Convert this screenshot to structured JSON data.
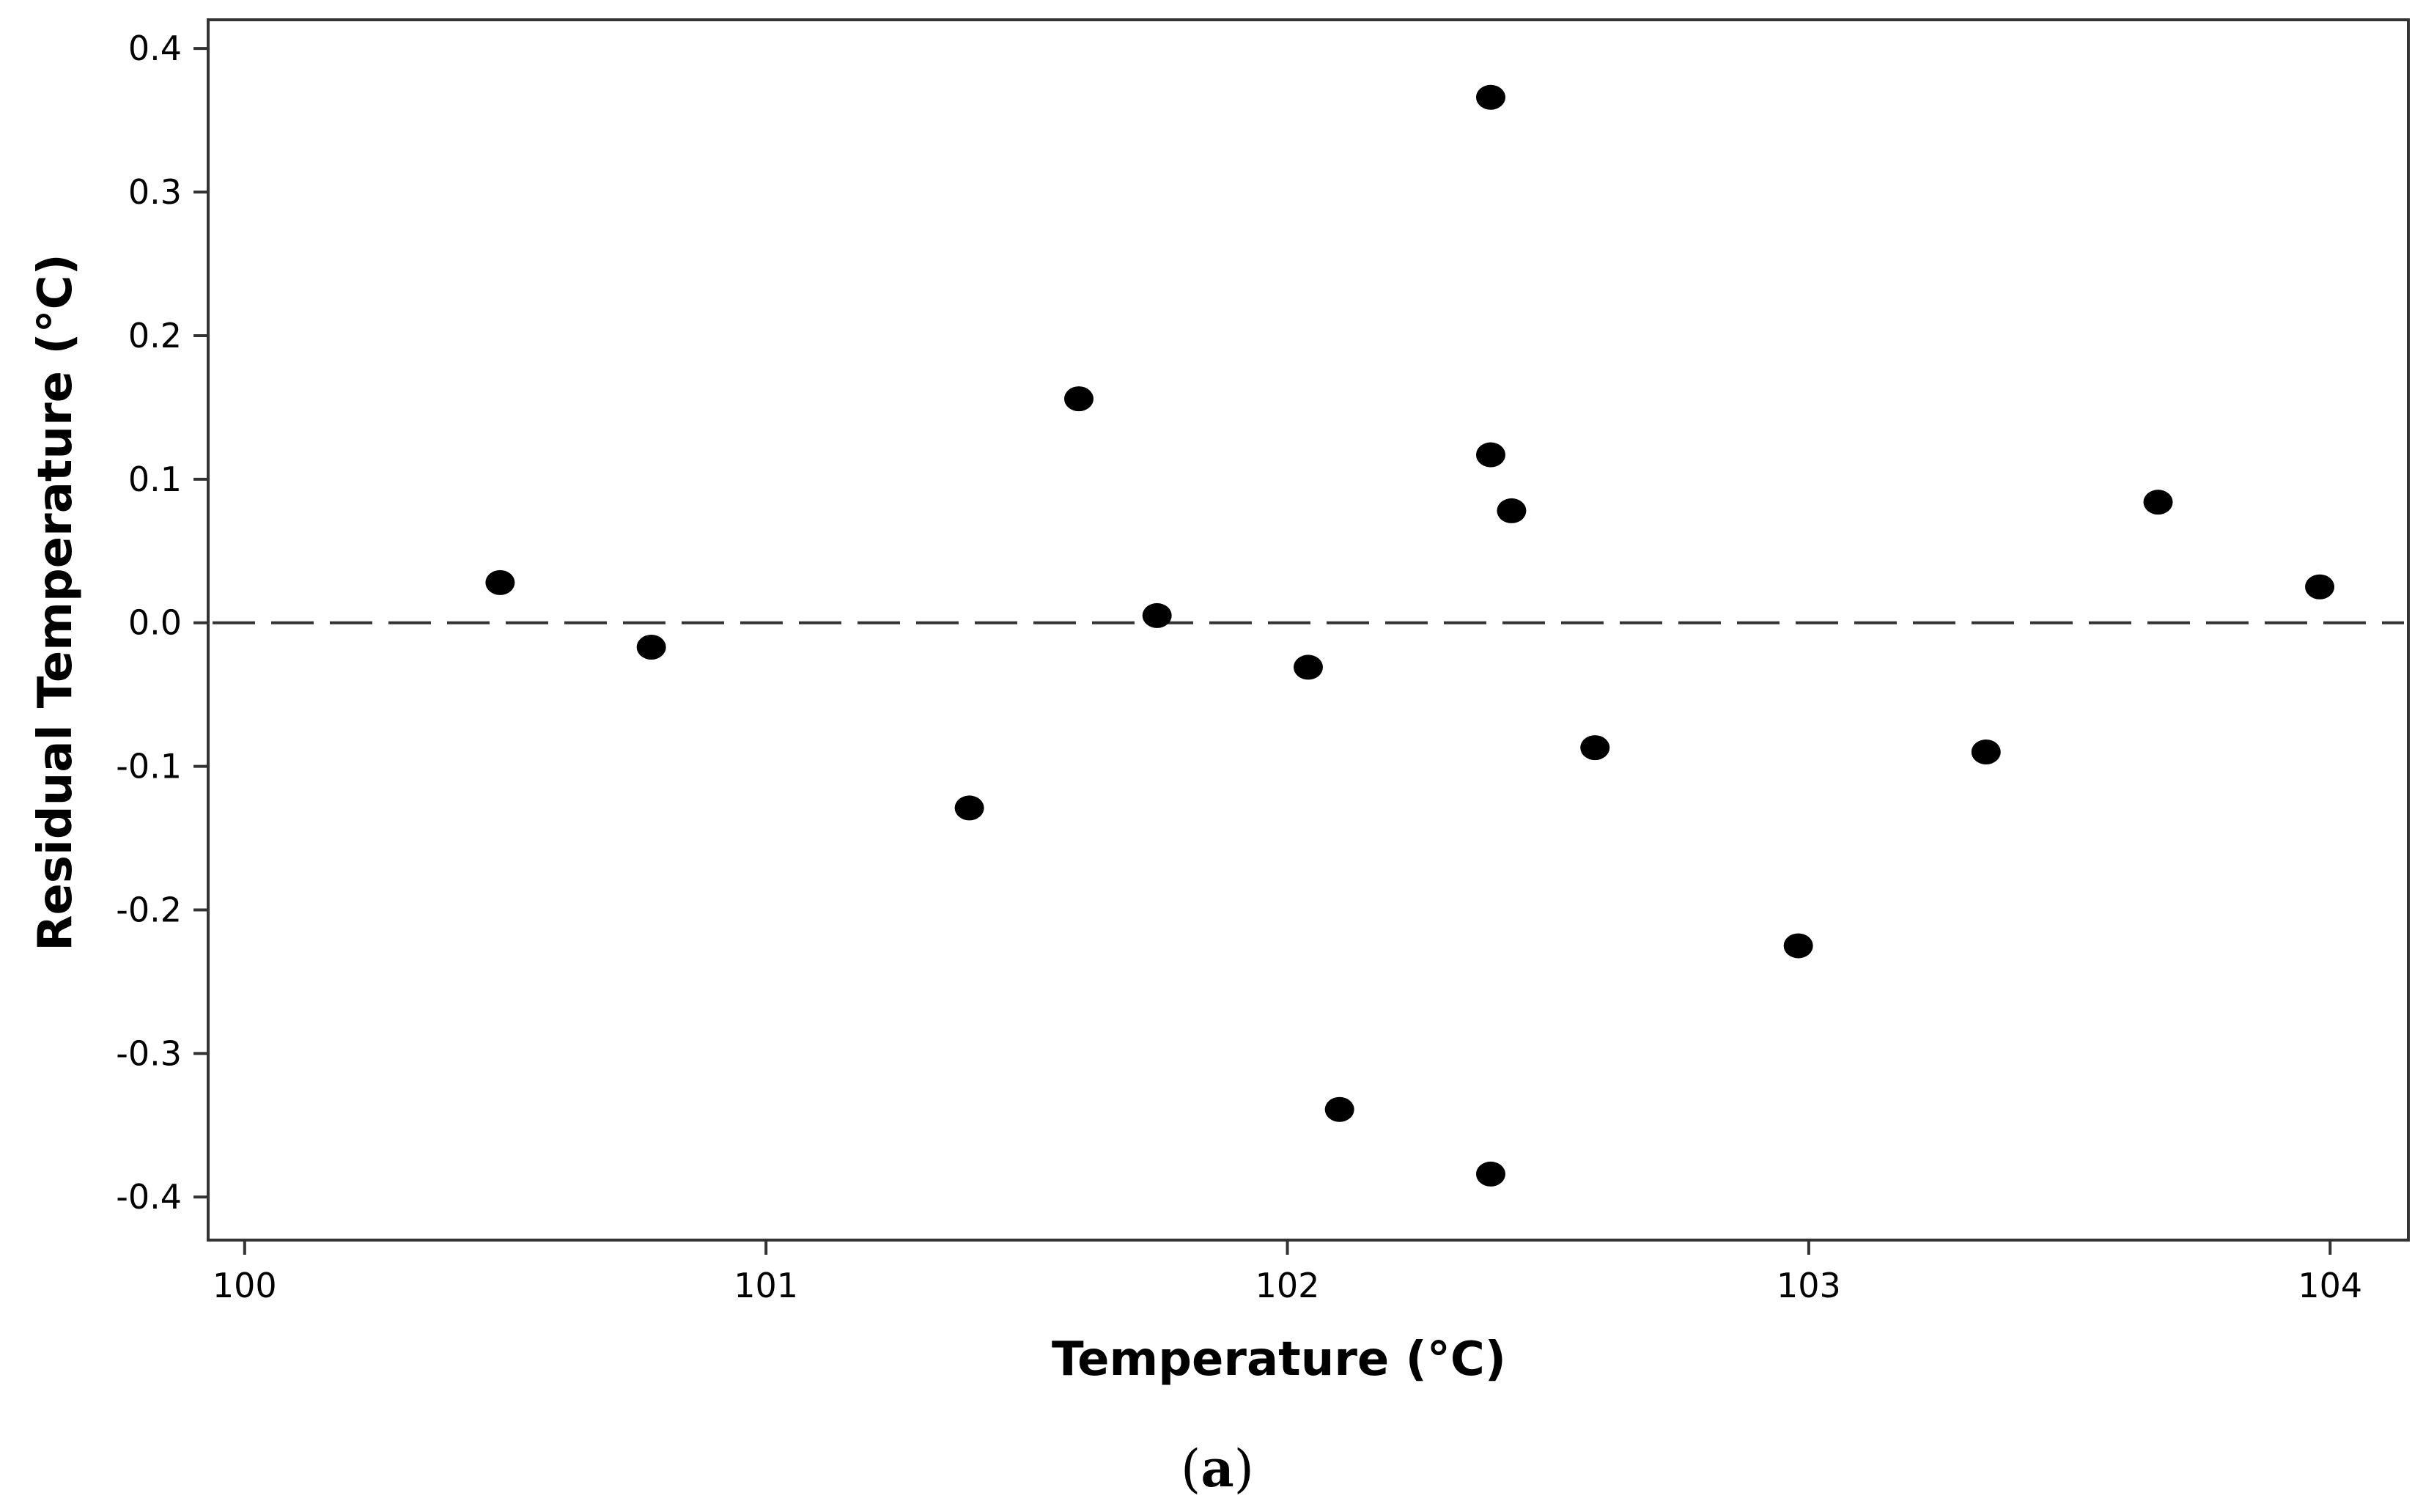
{
  "chart_data": {
    "type": "scatter",
    "xlabel": "Temperature (°C)",
    "ylabel": "Residual Temperature (°C)",
    "xlim": [
      99.93,
      104.15
    ],
    "ylim": [
      -0.43,
      0.42
    ],
    "xticks": [
      100,
      101,
      102,
      103,
      104
    ],
    "xtick_labels": [
      "100",
      "101",
      "102",
      "103",
      "104"
    ],
    "yticks": [
      0.4,
      0.3,
      0.2,
      0.1,
      0.0,
      -0.1,
      -0.2,
      -0.3,
      -0.4
    ],
    "ytick_labels": [
      "0.4",
      "0.3",
      "0.2",
      "0.1",
      "0.0",
      "-0.1",
      "-0.2",
      "-0.3",
      "-0.4"
    ],
    "reference_line": {
      "y": 0.0,
      "style": "dashed"
    },
    "grid": false,
    "legend": "none",
    "marker_color": "#000000",
    "points": [
      {
        "x": 100.49,
        "y": 0.028
      },
      {
        "x": 100.78,
        "y": -0.017
      },
      {
        "x": 101.39,
        "y": -0.129
      },
      {
        "x": 101.6,
        "y": 0.156
      },
      {
        "x": 101.75,
        "y": 0.005
      },
      {
        "x": 102.04,
        "y": -0.031
      },
      {
        "x": 102.1,
        "y": -0.339
      },
      {
        "x": 102.39,
        "y": 0.366
      },
      {
        "x": 102.39,
        "y": 0.117
      },
      {
        "x": 102.43,
        "y": 0.078
      },
      {
        "x": 102.39,
        "y": -0.384
      },
      {
        "x": 102.59,
        "y": -0.087
      },
      {
        "x": 102.98,
        "y": -0.225
      },
      {
        "x": 103.34,
        "y": -0.09
      },
      {
        "x": 103.67,
        "y": 0.084
      },
      {
        "x": 103.98,
        "y": 0.025
      }
    ]
  },
  "caption": {
    "open": "(",
    "letter": "a",
    "close": ")"
  }
}
